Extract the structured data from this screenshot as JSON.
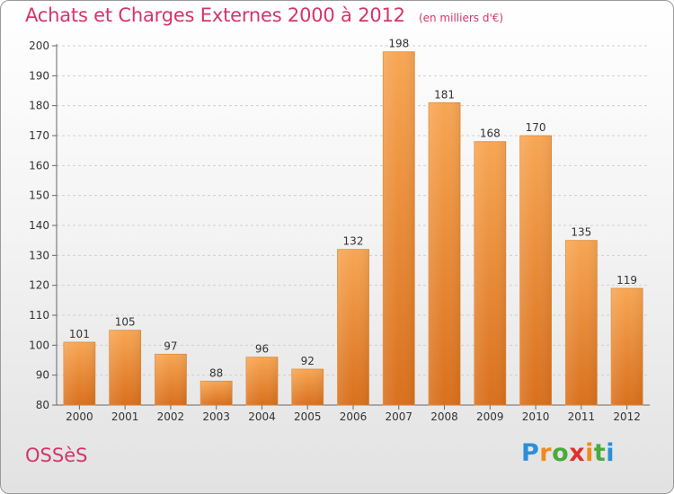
{
  "header": {
    "title": "Achats et Charges Externes 2000 à 2012",
    "subtitle": "(en milliers d'€)"
  },
  "footer": {
    "commune": "OSSèS",
    "logo_letters": [
      "P",
      "r",
      "o",
      "x",
      "i",
      "t",
      "i"
    ]
  },
  "colors": {
    "accent": "#d6336c",
    "bar_light": "#f7a654",
    "bar_dark": "#d9701d",
    "axis": "#555555",
    "grid": "#cccccc"
  },
  "chart_data": {
    "type": "bar",
    "title": "Achats et Charges Externes 2000 à 2012",
    "subtitle": "(en milliers d'€)",
    "xlabel": "",
    "ylabel": "",
    "categories": [
      "2000",
      "2001",
      "2002",
      "2003",
      "2004",
      "2005",
      "2006",
      "2007",
      "2008",
      "2009",
      "2010",
      "2011",
      "2012"
    ],
    "values": [
      101,
      105,
      97,
      88,
      96,
      92,
      132,
      198,
      181,
      168,
      170,
      135,
      119
    ],
    "ylim": [
      80,
      200
    ],
    "yticks": [
      80,
      90,
      100,
      110,
      120,
      130,
      140,
      150,
      160,
      170,
      180,
      190,
      200
    ],
    "grid": true,
    "legend": "none"
  }
}
